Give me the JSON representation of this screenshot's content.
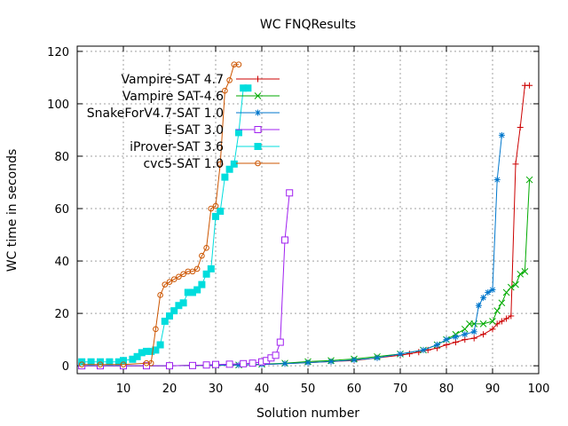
{
  "chart_data": {
    "type": "line",
    "title": "WC FNQResults",
    "xlabel": "Solution number",
    "ylabel": "WC time in seconds",
    "xlim": [
      0,
      100
    ],
    "ylim": [
      -3,
      122
    ],
    "xticks": [
      10,
      20,
      30,
      40,
      50,
      60,
      70,
      80,
      90,
      100
    ],
    "yticks": [
      0,
      20,
      40,
      60,
      80,
      100,
      120
    ],
    "grid": true,
    "legend_position": "top-left",
    "series": [
      {
        "name": "Vampire-SAT 4.7",
        "color": "#cc0000",
        "marker": "plus",
        "x": [
          1,
          5,
          10,
          15,
          20,
          25,
          30,
          35,
          40,
          45,
          50,
          55,
          60,
          65,
          70,
          72,
          74,
          76,
          78,
          80,
          82,
          84,
          86,
          88,
          90,
          91,
          92,
          93,
          94,
          95,
          96,
          97,
          98
        ],
        "y": [
          0,
          0,
          0,
          0,
          0,
          0.1,
          0.2,
          0.3,
          0.5,
          0.8,
          1.2,
          1.6,
          2,
          3,
          4,
          4.6,
          5.2,
          6,
          6.8,
          8,
          9,
          10,
          10.5,
          12,
          14,
          16,
          17,
          18,
          19,
          77,
          91,
          107,
          107
        ]
      },
      {
        "name": "Vampire SAT-4.6",
        "color": "#00aa00",
        "marker": "x",
        "x": [
          1,
          5,
          10,
          15,
          20,
          25,
          30,
          35,
          40,
          45,
          50,
          55,
          60,
          65,
          70,
          75,
          78,
          80,
          82,
          84,
          85,
          86,
          88,
          90,
          91,
          92,
          93,
          94,
          95,
          96,
          97,
          98
        ],
        "y": [
          0,
          0,
          0,
          0,
          0,
          0.1,
          0.2,
          0.3,
          0.6,
          1,
          1.6,
          2,
          2.6,
          3.5,
          4.5,
          6,
          8,
          10,
          12,
          14,
          16,
          16,
          16,
          17,
          21,
          24,
          28,
          30,
          31,
          35,
          36,
          71
        ]
      },
      {
        "name": "SnakeForV4.7-SAT 1.0",
        "color": "#0077cc",
        "marker": "star",
        "x": [
          1,
          5,
          10,
          15,
          20,
          25,
          30,
          35,
          40,
          45,
          50,
          55,
          60,
          65,
          70,
          75,
          78,
          80,
          82,
          84,
          86,
          87,
          88,
          89,
          90,
          91,
          92
        ],
        "y": [
          0,
          0,
          0,
          0,
          0,
          0.1,
          0.2,
          0.3,
          0.5,
          0.8,
          1.2,
          1.6,
          2.2,
          3,
          4.5,
          6,
          8,
          10,
          11,
          12,
          13,
          23,
          26,
          28,
          29,
          71,
          88
        ]
      },
      {
        "name": "E-SAT 3.0",
        "color": "#a020f0",
        "marker": "box",
        "x": [
          1,
          5,
          10,
          15,
          20,
          25,
          28,
          30,
          33,
          36,
          38,
          40,
          41,
          42,
          43,
          44,
          45,
          46
        ],
        "y": [
          0,
          0,
          0,
          0,
          0,
          0.1,
          0.3,
          0.5,
          0.6,
          0.8,
          1,
          1.5,
          2,
          3,
          4,
          9,
          48,
          66
        ]
      },
      {
        "name": "iProver-SAT 3.6",
        "color": "#00dddd",
        "marker": "filled-box",
        "x": [
          1,
          3,
          5,
          7,
          9,
          10,
          12,
          13,
          14,
          15,
          16,
          17,
          18,
          19,
          20,
          21,
          22,
          23,
          24,
          25,
          26,
          27,
          28,
          29,
          30,
          31,
          32,
          33,
          34,
          35,
          36,
          37
        ],
        "y": [
          1.5,
          1.5,
          1.5,
          1.5,
          1.5,
          2,
          2.5,
          3.5,
          5,
          5.5,
          5.5,
          6,
          8,
          17,
          19,
          21,
          23,
          24,
          28,
          28,
          29,
          31,
          35,
          37,
          57,
          59,
          72,
          75,
          77,
          89,
          106,
          106
        ]
      },
      {
        "name": "cvc5-SAT 1.0",
        "color": "#cc5500",
        "marker": "circle",
        "x": [
          1,
          5,
          10,
          15,
          16,
          17,
          18,
          19,
          20,
          21,
          22,
          23,
          24,
          25,
          26,
          27,
          28,
          29,
          30,
          31,
          32,
          33,
          34,
          35
        ],
        "y": [
          0.5,
          0.5,
          0.5,
          1,
          1,
          14,
          27,
          31,
          32,
          33,
          34,
          35,
          36,
          36,
          37,
          42,
          45,
          60,
          61,
          77,
          105,
          109,
          115,
          115
        ]
      }
    ]
  }
}
